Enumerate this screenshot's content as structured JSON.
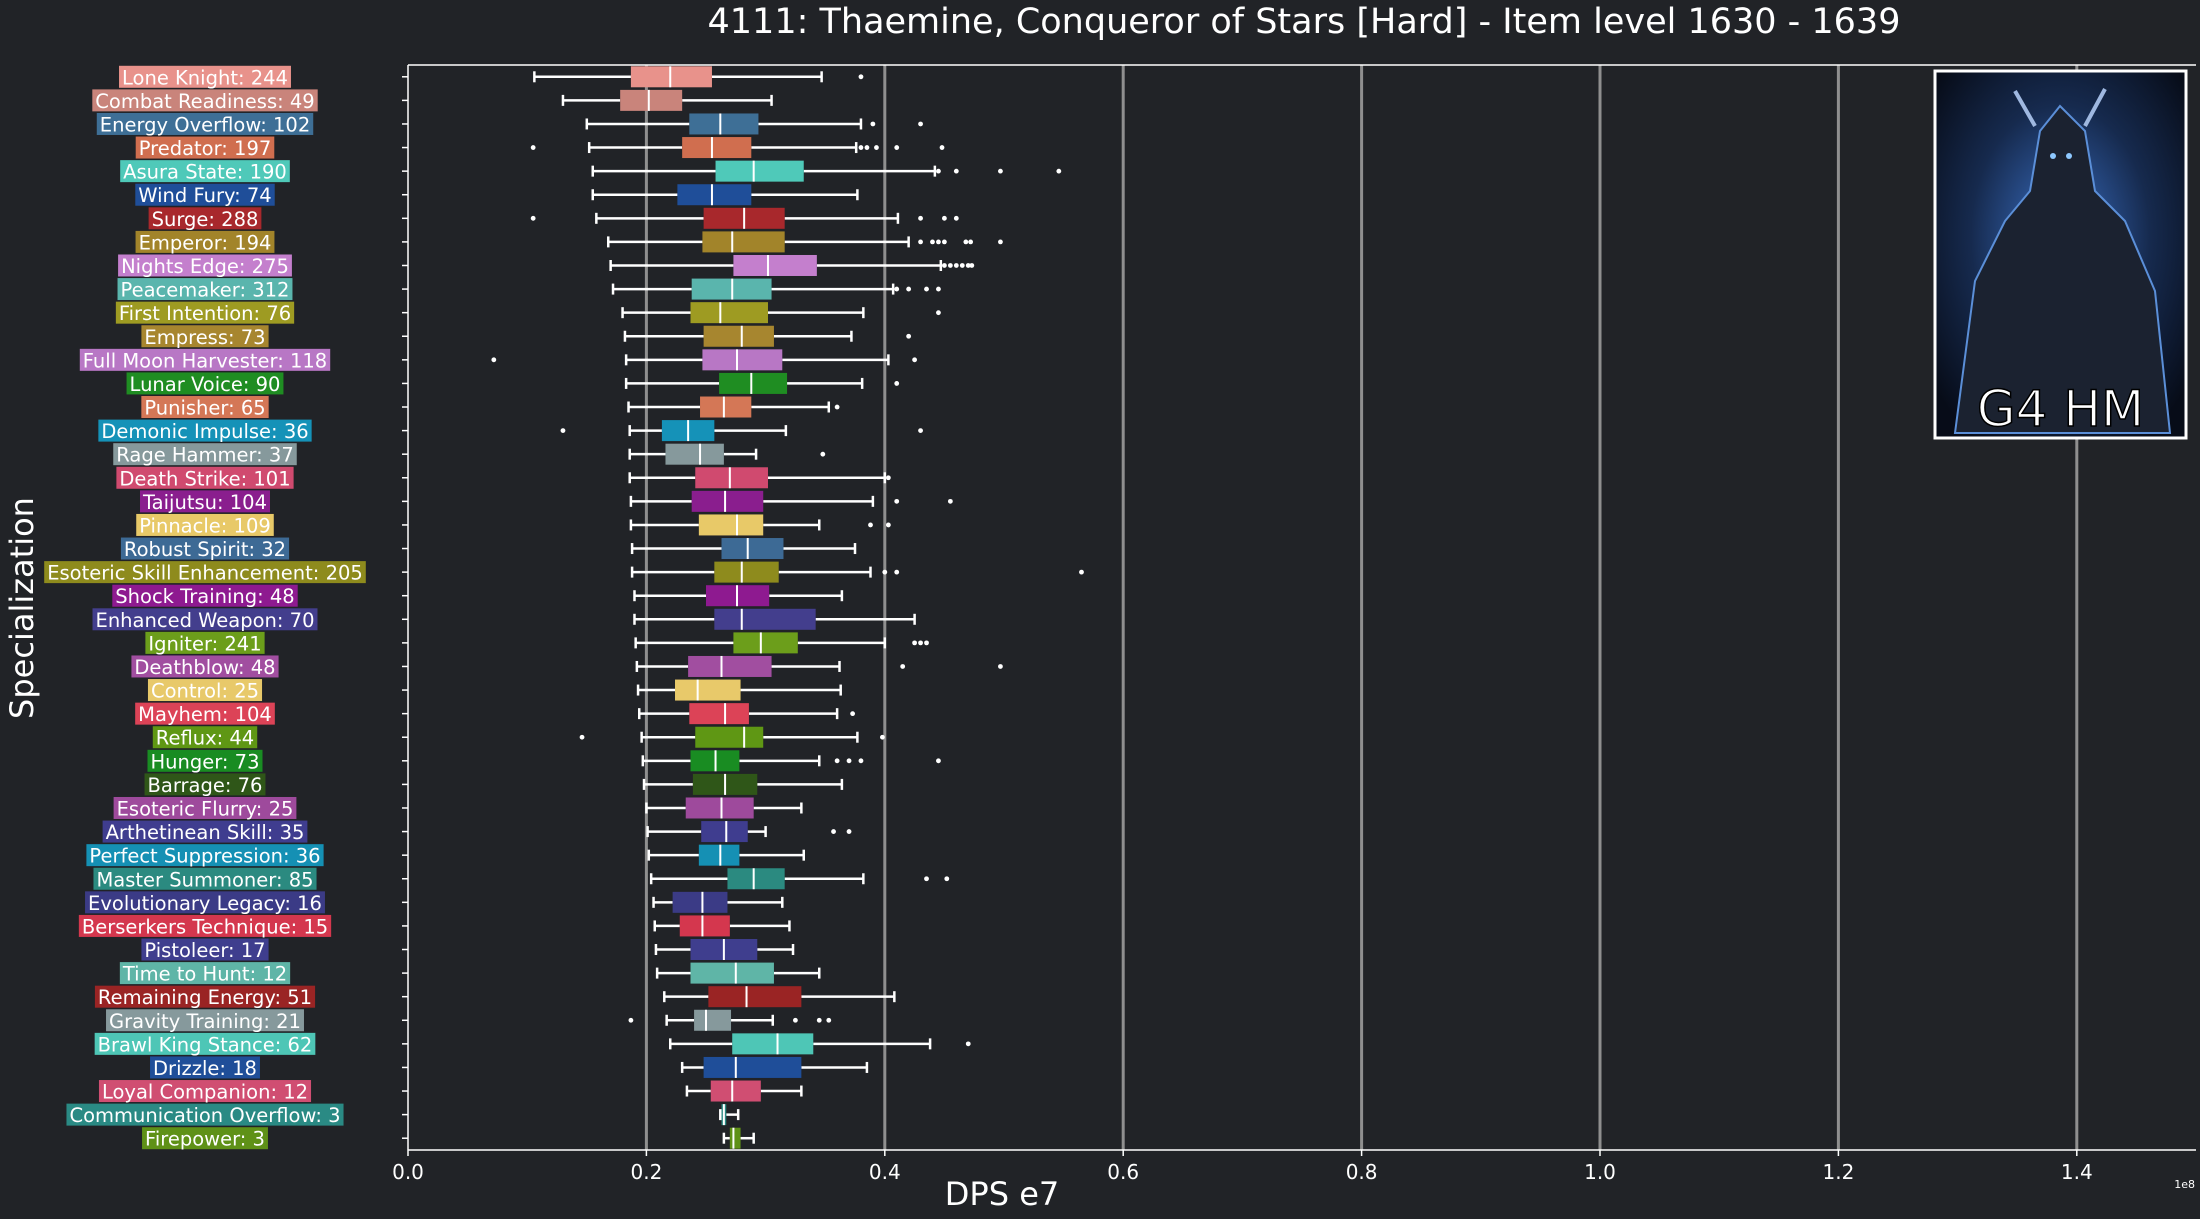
{
  "chart_data": {
    "type": "boxplot",
    "orientation": "horizontal",
    "title": "4111: Thaemine, Conqueror of Stars [Hard] - Item level 1630 - 1639",
    "xlabel": "DPS e7",
    "ylabel": "Specialization",
    "x_offset_text": "1e8",
    "xlim": [
      0,
      1.5
    ],
    "xticks": [
      "0.0",
      "0.2",
      "0.4",
      "0.6",
      "0.8",
      "1.0",
      "1.2",
      "1.4"
    ],
    "grid": "vertical",
    "inset_image_caption": "G4 HM",
    "series": [
      {
        "label": "Lone Knight: 244",
        "color": "#e8928b",
        "whislo": 0.106,
        "q1": 0.187,
        "med": 0.22,
        "q3": 0.255,
        "whishi": 0.347,
        "fliers": [
          0.38
        ]
      },
      {
        "label": "Combat Readiness: 49",
        "color": "#c9847b",
        "whislo": 0.13,
        "q1": 0.178,
        "med": 0.202,
        "q3": 0.23,
        "whishi": 0.305,
        "fliers": []
      },
      {
        "label": "Energy Overflow: 102",
        "color": "#3e6f96",
        "whislo": 0.15,
        "q1": 0.236,
        "med": 0.262,
        "q3": 0.294,
        "whishi": 0.38,
        "fliers": [
          0.39,
          0.43
        ]
      },
      {
        "label": "Predator: 197",
        "color": "#d06e4f",
        "whislo": 0.152,
        "q1": 0.23,
        "med": 0.255,
        "q3": 0.288,
        "whishi": 0.376,
        "fliers": [
          0.105,
          0.38,
          0.385,
          0.393,
          0.41,
          0.448
        ]
      },
      {
        "label": "Asura State: 190",
        "color": "#4fc9b9",
        "whislo": 0.155,
        "q1": 0.258,
        "med": 0.29,
        "q3": 0.332,
        "whishi": 0.442,
        "fliers": [
          0.445,
          0.46,
          0.497,
          0.546
        ]
      },
      {
        "label": "Wind Fury: 74",
        "color": "#1f4e99",
        "whislo": 0.155,
        "q1": 0.226,
        "med": 0.255,
        "q3": 0.288,
        "whishi": 0.377,
        "fliers": []
      },
      {
        "label": "Surge: 288",
        "color": "#a8282c",
        "whislo": 0.158,
        "q1": 0.248,
        "med": 0.282,
        "q3": 0.316,
        "whishi": 0.411,
        "fliers": [
          0.105,
          0.43,
          0.45,
          0.46
        ]
      },
      {
        "label": "Emperor: 194",
        "color": "#a2842a",
        "whislo": 0.168,
        "q1": 0.247,
        "med": 0.272,
        "q3": 0.316,
        "whishi": 0.42,
        "fliers": [
          0.43,
          0.44,
          0.445,
          0.45,
          0.468,
          0.472,
          0.497
        ]
      },
      {
        "label": "Nights Edge: 275",
        "color": "#c47fcd",
        "whislo": 0.17,
        "q1": 0.273,
        "med": 0.302,
        "q3": 0.343,
        "whishi": 0.447,
        "fliers": [
          0.45,
          0.455,
          0.46,
          0.465,
          0.47,
          0.473
        ]
      },
      {
        "label": "Peacemaker: 312",
        "color": "#5ab5ad",
        "whislo": 0.172,
        "q1": 0.238,
        "med": 0.272,
        "q3": 0.305,
        "whishi": 0.407,
        "fliers": [
          0.41,
          0.42,
          0.435,
          0.445
        ]
      },
      {
        "label": "First Intention: 76",
        "color": "#9e9b22",
        "whislo": 0.18,
        "q1": 0.237,
        "med": 0.262,
        "q3": 0.302,
        "whishi": 0.382,
        "fliers": [
          0.445
        ]
      },
      {
        "label": "Empress: 73",
        "color": "#a7862f",
        "whislo": 0.182,
        "q1": 0.248,
        "med": 0.28,
        "q3": 0.307,
        "whishi": 0.372,
        "fliers": [
          0.42
        ]
      },
      {
        "label": "Full Moon Harvester: 118",
        "color": "#b877c5",
        "whislo": 0.183,
        "q1": 0.247,
        "med": 0.276,
        "q3": 0.314,
        "whishi": 0.403,
        "fliers": [
          0.072,
          0.425
        ]
      },
      {
        "label": "Lunar Voice: 90",
        "color": "#1f8d22",
        "whislo": 0.183,
        "q1": 0.261,
        "med": 0.288,
        "q3": 0.318,
        "whishi": 0.381,
        "fliers": [
          0.41
        ]
      },
      {
        "label": "Punisher: 65",
        "color": "#d47756",
        "whislo": 0.185,
        "q1": 0.245,
        "med": 0.265,
        "q3": 0.288,
        "whishi": 0.353,
        "fliers": [
          0.36
        ]
      },
      {
        "label": "Demonic Impulse: 36",
        "color": "#1592b8",
        "whislo": 0.186,
        "q1": 0.213,
        "med": 0.235,
        "q3": 0.257,
        "whishi": 0.317,
        "fliers": [
          0.13,
          0.43
        ]
      },
      {
        "label": "Rage Hammer: 37",
        "color": "#86999c",
        "whislo": 0.186,
        "q1": 0.216,
        "med": 0.245,
        "q3": 0.265,
        "whishi": 0.292,
        "fliers": [
          0.348
        ]
      },
      {
        "label": "Death Strike: 101",
        "color": "#d04a6f",
        "whislo": 0.186,
        "q1": 0.241,
        "med": 0.27,
        "q3": 0.302,
        "whishi": 0.4,
        "fliers": [
          0.403
        ]
      },
      {
        "label": "Taijutsu: 104",
        "color": "#8a1e8e",
        "whislo": 0.187,
        "q1": 0.238,
        "med": 0.266,
        "q3": 0.298,
        "whishi": 0.39,
        "fliers": [
          0.41,
          0.455
        ]
      },
      {
        "label": "Pinnacle: 109",
        "color": "#e8c968",
        "whislo": 0.187,
        "q1": 0.244,
        "med": 0.276,
        "q3": 0.298,
        "whishi": 0.345,
        "fliers": [
          0.388,
          0.403
        ]
      },
      {
        "label": "Robust Spirit: 32",
        "color": "#3d6a95",
        "whislo": 0.188,
        "q1": 0.263,
        "med": 0.285,
        "q3": 0.315,
        "whishi": 0.375,
        "fliers": []
      },
      {
        "label": "Esoteric Skill Enhancement: 205",
        "color": "#8e8b1d",
        "whislo": 0.188,
        "q1": 0.257,
        "med": 0.28,
        "q3": 0.311,
        "whishi": 0.388,
        "fliers": [
          0.4,
          0.41,
          0.565
        ]
      },
      {
        "label": "Shock Training: 48",
        "color": "#8e1a90",
        "whislo": 0.19,
        "q1": 0.25,
        "med": 0.276,
        "q3": 0.303,
        "whishi": 0.364,
        "fliers": []
      },
      {
        "label": "Enhanced Weapon: 70",
        "color": "#433e8d",
        "whislo": 0.19,
        "q1": 0.257,
        "med": 0.28,
        "q3": 0.342,
        "whishi": 0.425,
        "fliers": []
      },
      {
        "label": "Igniter: 241",
        "color": "#6c9e1b",
        "whislo": 0.191,
        "q1": 0.273,
        "med": 0.296,
        "q3": 0.327,
        "whishi": 0.4,
        "fliers": [
          0.425,
          0.43,
          0.435
        ]
      },
      {
        "label": "Deathblow: 48",
        "color": "#a14ea0",
        "whislo": 0.192,
        "q1": 0.235,
        "med": 0.263,
        "q3": 0.305,
        "whishi": 0.362,
        "fliers": [
          0.415,
          0.497
        ]
      },
      {
        "label": "Control: 25",
        "color": "#e8c96a",
        "whislo": 0.193,
        "q1": 0.224,
        "med": 0.243,
        "q3": 0.279,
        "whishi": 0.363,
        "fliers": []
      },
      {
        "label": "Mayhem: 104",
        "color": "#dc4357",
        "whislo": 0.194,
        "q1": 0.236,
        "med": 0.266,
        "q3": 0.286,
        "whishi": 0.36,
        "fliers": [
          0.373
        ]
      },
      {
        "label": "Reflux: 44",
        "color": "#5f9714",
        "whislo": 0.196,
        "q1": 0.241,
        "med": 0.282,
        "q3": 0.298,
        "whishi": 0.377,
        "fliers": [
          0.146,
          0.398
        ]
      },
      {
        "label": "Hunger: 73",
        "color": "#198c22",
        "whislo": 0.197,
        "q1": 0.237,
        "med": 0.258,
        "q3": 0.278,
        "whishi": 0.345,
        "fliers": [
          0.36,
          0.37,
          0.38,
          0.445
        ]
      },
      {
        "label": "Barrage: 76",
        "color": "#2f5618",
        "whislo": 0.198,
        "q1": 0.239,
        "med": 0.266,
        "q3": 0.293,
        "whishi": 0.364,
        "fliers": []
      },
      {
        "label": "Esoteric Flurry: 25",
        "color": "#9e4a9c",
        "whislo": 0.2,
        "q1": 0.233,
        "med": 0.263,
        "q3": 0.29,
        "whishi": 0.33,
        "fliers": []
      },
      {
        "label": "Arthetinean Skill: 35",
        "color": "#3f3d8f",
        "whislo": 0.201,
        "q1": 0.246,
        "med": 0.267,
        "q3": 0.285,
        "whishi": 0.3,
        "fliers": [
          0.357,
          0.37
        ]
      },
      {
        "label": "Perfect Suppression: 36",
        "color": "#1590b4",
        "whislo": 0.202,
        "q1": 0.244,
        "med": 0.262,
        "q3": 0.278,
        "whishi": 0.332,
        "fliers": []
      },
      {
        "label": "Master Summoner: 85",
        "color": "#2b8a80",
        "whislo": 0.204,
        "q1": 0.268,
        "med": 0.29,
        "q3": 0.316,
        "whishi": 0.382,
        "fliers": [
          0.435,
          0.452
        ]
      },
      {
        "label": "Evolutionary Legacy: 16",
        "color": "#3b3b86",
        "whislo": 0.206,
        "q1": 0.222,
        "med": 0.247,
        "q3": 0.268,
        "whishi": 0.314,
        "fliers": []
      },
      {
        "label": "Berserkers Technique: 15",
        "color": "#d4374e",
        "whislo": 0.207,
        "q1": 0.228,
        "med": 0.247,
        "q3": 0.27,
        "whishi": 0.32,
        "fliers": []
      },
      {
        "label": "Pistoleer: 17",
        "color": "#3f3e8e",
        "whislo": 0.208,
        "q1": 0.237,
        "med": 0.265,
        "q3": 0.293,
        "whishi": 0.323,
        "fliers": []
      },
      {
        "label": "Time to Hunt: 12",
        "color": "#5fb5a7",
        "whislo": 0.209,
        "q1": 0.237,
        "med": 0.275,
        "q3": 0.307,
        "whishi": 0.345,
        "fliers": []
      },
      {
        "label": "Remaining Energy: 51",
        "color": "#9a2424",
        "whislo": 0.215,
        "q1": 0.252,
        "med": 0.284,
        "q3": 0.33,
        "whishi": 0.408,
        "fliers": []
      },
      {
        "label": "Gravity Training: 21",
        "color": "#86999c",
        "whislo": 0.217,
        "q1": 0.24,
        "med": 0.25,
        "q3": 0.271,
        "whishi": 0.306,
        "fliers": [
          0.187,
          0.325,
          0.345,
          0.353
        ]
      },
      {
        "label": "Brawl King Stance: 62",
        "color": "#4ec6b6",
        "whislo": 0.22,
        "q1": 0.272,
        "med": 0.31,
        "q3": 0.34,
        "whishi": 0.438,
        "fliers": [
          0.47
        ]
      },
      {
        "label": "Drizzle: 18",
        "color": "#1f4e99",
        "whislo": 0.23,
        "q1": 0.248,
        "med": 0.275,
        "q3": 0.33,
        "whishi": 0.385,
        "fliers": []
      },
      {
        "label": "Loyal Companion: 12",
        "color": "#d04e72",
        "whislo": 0.234,
        "q1": 0.254,
        "med": 0.272,
        "q3": 0.296,
        "whishi": 0.33,
        "fliers": []
      },
      {
        "label": "Communication Overflow: 3",
        "color": "#2a8a84",
        "whislo": 0.262,
        "q1": 0.263,
        "med": 0.265,
        "q3": 0.267,
        "whishi": 0.277,
        "fliers": []
      },
      {
        "label": "Firepower: 3",
        "color": "#5f9117",
        "whislo": 0.265,
        "q1": 0.27,
        "med": 0.273,
        "q3": 0.279,
        "whishi": 0.29,
        "fliers": []
      }
    ]
  }
}
